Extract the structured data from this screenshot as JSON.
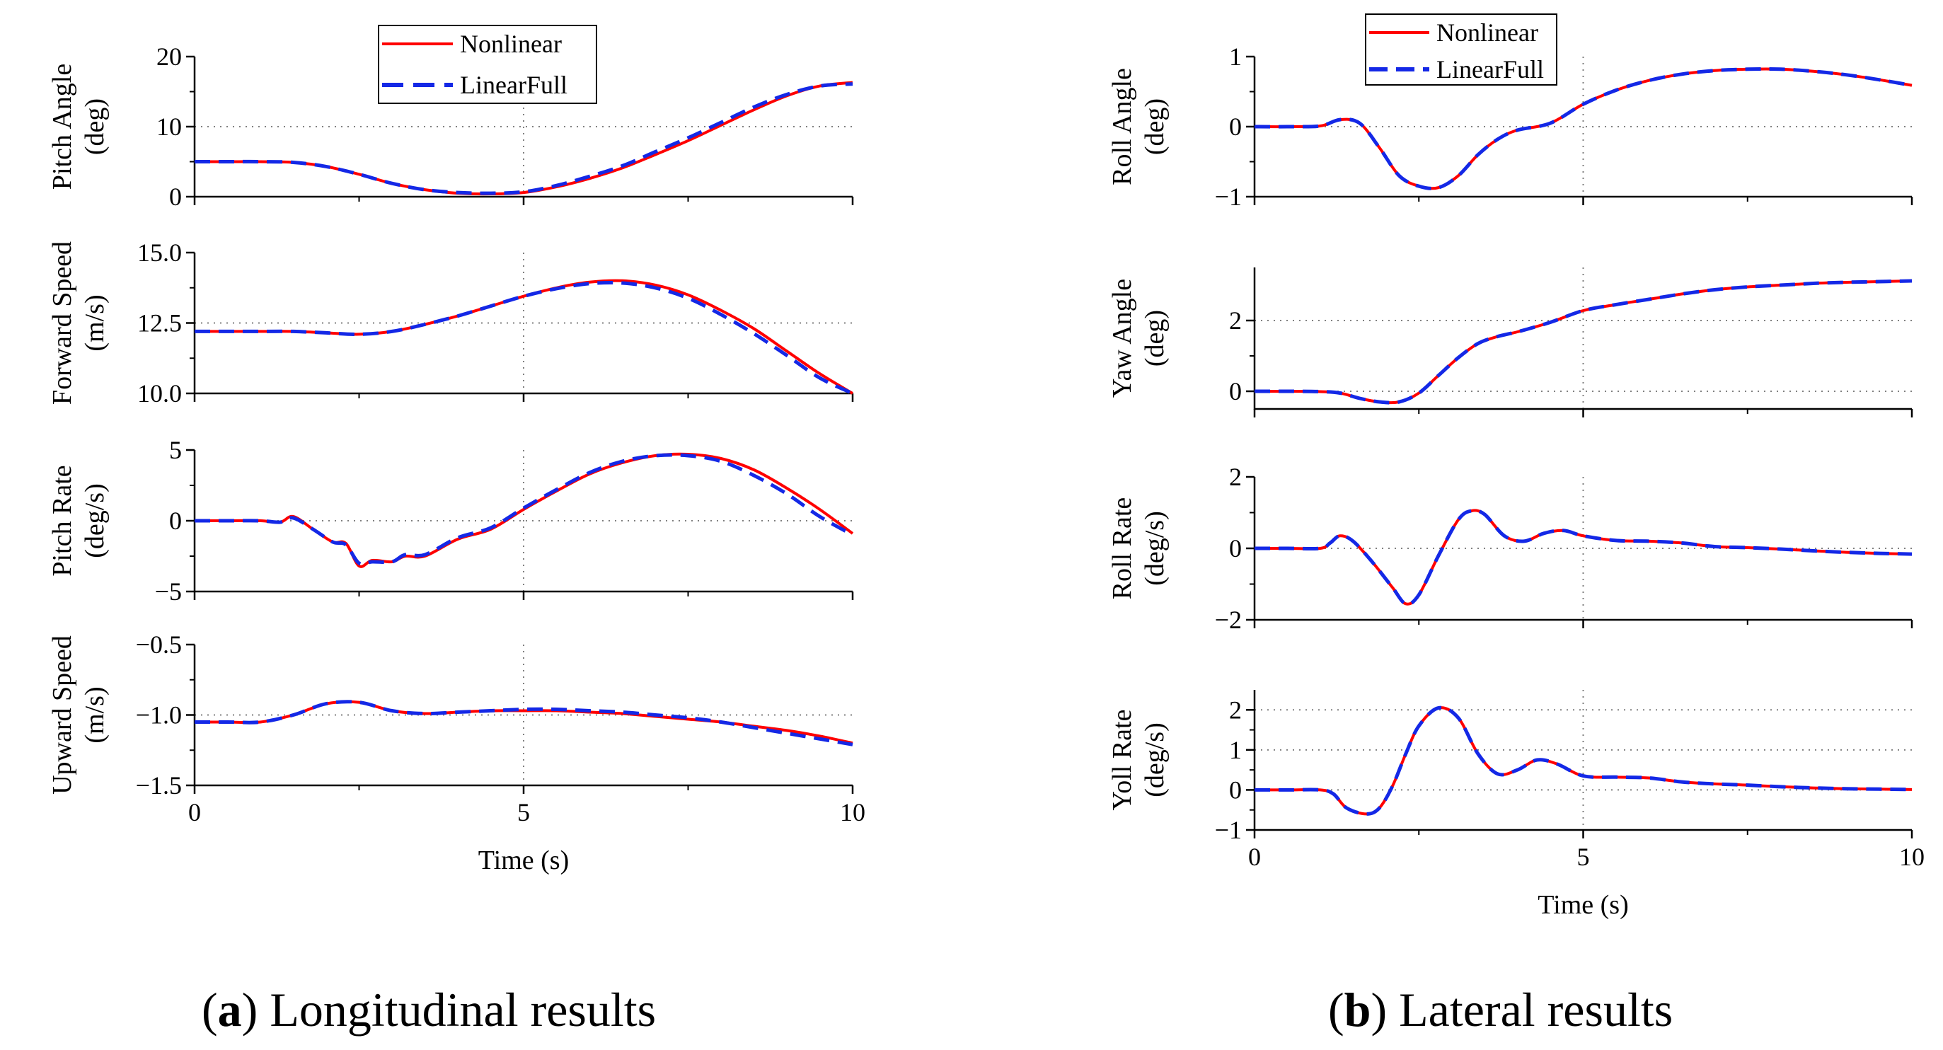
{
  "colors": {
    "nonlinear": "#ff0000",
    "linear": "#1428e6",
    "axis": "#000000",
    "grid": "#808080"
  },
  "legend": {
    "nonlinear": "Nonlinear",
    "linear": "LinearFull"
  },
  "captions": {
    "a": {
      "letter": "a",
      "text": "Longitudinal results"
    },
    "b": {
      "letter": "b",
      "text": "Lateral results"
    }
  },
  "chart_data": [
    {
      "id": "pitch-angle",
      "panel": "a",
      "type": "line",
      "ylabel": [
        "Pitch Angle",
        "(deg)"
      ],
      "xlabel": "",
      "ylim": [
        0,
        20
      ],
      "yticks": [
        0,
        10,
        20
      ],
      "ytick_labels": [
        "0",
        "10",
        "20"
      ],
      "xlim": [
        0,
        10
      ],
      "xticks": [
        0,
        5,
        10
      ],
      "xtick_labels": [],
      "grid_y": [
        10
      ],
      "grid_x": [
        5
      ],
      "x": [
        0,
        0.5,
        1,
        1.5,
        2,
        2.5,
        3,
        3.5,
        4,
        4.5,
        5,
        5.5,
        6,
        6.5,
        7,
        7.5,
        8,
        8.5,
        9,
        9.5,
        10
      ],
      "series": [
        {
          "name": "Nonlinear",
          "values": [
            5,
            5,
            5,
            4.9,
            4.3,
            3.2,
            1.9,
            1.0,
            0.5,
            0.4,
            0.6,
            1.4,
            2.6,
            4.1,
            6.0,
            8.0,
            10.2,
            12.4,
            14.4,
            15.8,
            16.3
          ]
        },
        {
          "name": "LinearFull",
          "values": [
            5,
            5,
            5,
            4.9,
            4.3,
            3.2,
            1.9,
            1.0,
            0.6,
            0.5,
            0.7,
            1.6,
            2.9,
            4.4,
            6.4,
            8.4,
            10.6,
            12.8,
            14.6,
            15.8,
            16.1
          ]
        }
      ]
    },
    {
      "id": "forward-speed",
      "panel": "a",
      "type": "line",
      "ylabel": [
        "Forward Speed",
        "(m/s)"
      ],
      "xlabel": "",
      "ylim": [
        10,
        15
      ],
      "yticks": [
        10,
        12.5,
        15
      ],
      "ytick_labels": [
        "10.0",
        "12.5",
        "15.0"
      ],
      "xlim": [
        0,
        10
      ],
      "xticks": [
        0,
        5,
        10
      ],
      "xtick_labels": [],
      "grid_y": [
        12.5
      ],
      "grid_x": [
        5
      ],
      "x": [
        0,
        0.5,
        1,
        1.5,
        2,
        2.5,
        3,
        3.5,
        4,
        4.5,
        5,
        5.5,
        6,
        6.5,
        7,
        7.5,
        8,
        8.5,
        9,
        9.5,
        10
      ],
      "series": [
        {
          "name": "Nonlinear",
          "values": [
            12.2,
            12.2,
            12.2,
            12.2,
            12.15,
            12.1,
            12.2,
            12.45,
            12.75,
            13.1,
            13.45,
            13.75,
            13.95,
            14.0,
            13.85,
            13.5,
            12.95,
            12.3,
            11.5,
            10.7,
            10.0
          ]
        },
        {
          "name": "LinearFull",
          "values": [
            12.2,
            12.2,
            12.2,
            12.2,
            12.15,
            12.1,
            12.2,
            12.45,
            12.75,
            13.1,
            13.45,
            13.72,
            13.9,
            13.92,
            13.75,
            13.38,
            12.8,
            12.12,
            11.35,
            10.55,
            10.0
          ]
        }
      ]
    },
    {
      "id": "pitch-rate",
      "panel": "a",
      "type": "line",
      "ylabel": [
        "Pitch Rate",
        "(deg/s)"
      ],
      "xlabel": "",
      "ylim": [
        -5,
        5
      ],
      "yticks": [
        -5,
        0,
        5
      ],
      "ytick_labels": [
        "−5",
        "0",
        "5"
      ],
      "xlim": [
        0,
        10
      ],
      "xticks": [
        0,
        5,
        10
      ],
      "xtick_labels": [],
      "grid_y": [
        0
      ],
      "grid_x": [
        5
      ],
      "x": [
        0,
        0.5,
        1,
        1.3,
        1.5,
        1.8,
        2.1,
        2.3,
        2.5,
        2.7,
        3.0,
        3.2,
        3.5,
        4,
        4.5,
        5,
        5.5,
        6,
        6.5,
        7,
        7.5,
        8,
        8.5,
        9,
        9.5,
        10
      ],
      "series": [
        {
          "name": "Nonlinear",
          "values": [
            0,
            0,
            0,
            -0.1,
            0.3,
            -0.6,
            -1.5,
            -1.6,
            -3.2,
            -2.8,
            -2.9,
            -2.5,
            -2.5,
            -1.3,
            -0.6,
            0.8,
            2.1,
            3.3,
            4.1,
            4.6,
            4.7,
            4.4,
            3.6,
            2.3,
            0.8,
            -0.9
          ]
        },
        {
          "name": "LinearFull",
          "values": [
            0,
            0,
            0,
            -0.1,
            0.2,
            -0.6,
            -1.5,
            -1.7,
            -3.0,
            -2.9,
            -2.9,
            -2.4,
            -2.4,
            -1.2,
            -0.5,
            0.9,
            2.2,
            3.4,
            4.2,
            4.6,
            4.6,
            4.2,
            3.2,
            1.9,
            0.3,
            -1.0
          ]
        }
      ]
    },
    {
      "id": "upward-speed",
      "panel": "a",
      "type": "line",
      "ylabel": [
        "Upward Speed",
        "(m/s)"
      ],
      "xlabel": "Time (s)",
      "ylim": [
        -1.5,
        -0.5
      ],
      "yticks": [
        -1.5,
        -1.0,
        -0.5
      ],
      "ytick_labels": [
        "−1.5",
        "−1.0",
        "−0.5"
      ],
      "xlim": [
        0,
        10
      ],
      "xticks": [
        0,
        5,
        10
      ],
      "xtick_labels": [
        "0",
        "5",
        "10"
      ],
      "grid_y": [
        -1.0
      ],
      "grid_x": [
        5
      ],
      "x": [
        0,
        0.5,
        1,
        1.5,
        2,
        2.5,
        3,
        3.5,
        4,
        4.5,
        5,
        5.5,
        6,
        6.5,
        7,
        7.5,
        8,
        8.5,
        9,
        9.5,
        10
      ],
      "series": [
        {
          "name": "Nonlinear",
          "values": [
            -1.05,
            -1.05,
            -1.05,
            -1.0,
            -0.92,
            -0.91,
            -0.97,
            -0.99,
            -0.98,
            -0.97,
            -0.97,
            -0.97,
            -0.98,
            -0.99,
            -1.01,
            -1.03,
            -1.05,
            -1.08,
            -1.11,
            -1.15,
            -1.2
          ]
        },
        {
          "name": "LinearFull",
          "values": [
            -1.05,
            -1.05,
            -1.05,
            -1.0,
            -0.92,
            -0.91,
            -0.97,
            -0.99,
            -0.98,
            -0.97,
            -0.96,
            -0.96,
            -0.97,
            -0.98,
            -1.0,
            -1.02,
            -1.05,
            -1.09,
            -1.13,
            -1.17,
            -1.21
          ]
        }
      ]
    },
    {
      "id": "roll-angle",
      "panel": "b",
      "type": "line",
      "ylabel": [
        "Roll Angle",
        "(deg)"
      ],
      "xlabel": "",
      "ylim": [
        -1,
        1
      ],
      "yticks": [
        -1,
        0,
        1
      ],
      "ytick_labels": [
        "−1",
        "0",
        "1"
      ],
      "xlim": [
        0,
        10
      ],
      "xticks": [
        0,
        5,
        10
      ],
      "xtick_labels": [],
      "grid_y": [
        0
      ],
      "grid_x": [
        5
      ],
      "x": [
        0,
        0.5,
        1,
        1.3,
        1.6,
        1.9,
        2.2,
        2.5,
        2.8,
        3.1,
        3.4,
        3.7,
        4,
        4.5,
        5,
        5.5,
        6,
        6.5,
        7,
        7.5,
        8,
        8.5,
        9,
        9.5,
        10
      ],
      "series": [
        {
          "name": "Nonlinear",
          "values": [
            0,
            0,
            0.01,
            0.1,
            0.05,
            -0.3,
            -0.7,
            -0.85,
            -0.87,
            -0.7,
            -0.4,
            -0.18,
            -0.05,
            0.05,
            0.32,
            0.52,
            0.66,
            0.75,
            0.8,
            0.82,
            0.82,
            0.79,
            0.74,
            0.67,
            0.59
          ]
        },
        {
          "name": "LinearFull",
          "values": [
            0,
            0,
            0.01,
            0.1,
            0.05,
            -0.3,
            -0.7,
            -0.85,
            -0.87,
            -0.7,
            -0.4,
            -0.18,
            -0.05,
            0.05,
            0.32,
            0.52,
            0.66,
            0.75,
            0.8,
            0.82,
            0.82,
            0.79,
            0.74,
            0.67,
            0.59
          ]
        }
      ]
    },
    {
      "id": "yaw-angle",
      "panel": "b",
      "type": "line",
      "ylabel": [
        "Yaw Angle",
        "(deg)"
      ],
      "xlabel": "",
      "ylim": [
        -0.5,
        3.5
      ],
      "yticks": [
        0,
        2
      ],
      "ytick_labels": [
        "0",
        "2"
      ],
      "xlim": [
        0,
        10
      ],
      "xticks": [
        0,
        5,
        10
      ],
      "xtick_labels": [],
      "grid_y": [
        0,
        2
      ],
      "grid_x": [
        5
      ],
      "x": [
        0,
        0.5,
        1,
        1.3,
        1.6,
        1.9,
        2.2,
        2.5,
        2.8,
        3.1,
        3.4,
        3.7,
        4,
        4.5,
        5,
        5.5,
        6,
        6.5,
        7,
        7.5,
        8,
        8.5,
        9,
        9.5,
        10
      ],
      "series": [
        {
          "name": "Nonlinear",
          "values": [
            0,
            0,
            -0.01,
            -0.05,
            -0.2,
            -0.3,
            -0.3,
            -0.05,
            0.45,
            0.95,
            1.35,
            1.55,
            1.68,
            1.95,
            2.28,
            2.45,
            2.6,
            2.75,
            2.87,
            2.95,
            3.0,
            3.05,
            3.08,
            3.1,
            3.12
          ]
        },
        {
          "name": "LinearFull",
          "values": [
            0,
            0,
            -0.01,
            -0.05,
            -0.2,
            -0.3,
            -0.3,
            -0.05,
            0.45,
            0.95,
            1.35,
            1.55,
            1.68,
            1.95,
            2.28,
            2.45,
            2.6,
            2.75,
            2.87,
            2.95,
            3.0,
            3.05,
            3.08,
            3.1,
            3.12
          ]
        }
      ]
    },
    {
      "id": "roll-rate",
      "panel": "b",
      "type": "line",
      "ylabel": [
        "Roll Rate",
        "(deg/s)"
      ],
      "xlabel": "",
      "ylim": [
        -2,
        2
      ],
      "yticks": [
        -2,
        0,
        2
      ],
      "ytick_labels": [
        "−2",
        "0",
        "2"
      ],
      "xlim": [
        0,
        10
      ],
      "xticks": [
        0,
        5,
        10
      ],
      "xtick_labels": [],
      "grid_y": [
        0
      ],
      "grid_x": [
        5
      ],
      "x": [
        0,
        0.5,
        1,
        1.15,
        1.3,
        1.5,
        1.8,
        2.1,
        2.3,
        2.5,
        2.8,
        3.1,
        3.3,
        3.5,
        3.8,
        4.1,
        4.4,
        4.7,
        5,
        5.5,
        6,
        6.5,
        7,
        7.5,
        8,
        8.5,
        9,
        9.5,
        10
      ],
      "series": [
        {
          "name": "Nonlinear",
          "values": [
            0,
            0,
            0,
            0.15,
            0.35,
            0.2,
            -0.4,
            -1.1,
            -1.55,
            -1.3,
            -0.2,
            0.8,
            1.05,
            0.95,
            0.35,
            0.2,
            0.42,
            0.5,
            0.35,
            0.22,
            0.2,
            0.15,
            0.05,
            0.02,
            -0.02,
            -0.07,
            -0.11,
            -0.14,
            -0.16
          ]
        },
        {
          "name": "LinearFull",
          "values": [
            0,
            0,
            0,
            0.15,
            0.35,
            0.2,
            -0.4,
            -1.1,
            -1.55,
            -1.3,
            -0.2,
            0.8,
            1.05,
            0.95,
            0.35,
            0.2,
            0.42,
            0.5,
            0.35,
            0.22,
            0.2,
            0.15,
            0.05,
            0.02,
            -0.02,
            -0.07,
            -0.11,
            -0.14,
            -0.16
          ]
        }
      ]
    },
    {
      "id": "yoll-rate",
      "panel": "b",
      "type": "line",
      "ylabel": [
        "Yoll Rate",
        "(deg/s)"
      ],
      "xlabel": "Time (s)",
      "ylim": [
        -1,
        2.5
      ],
      "yticks": [
        -1,
        0,
        1,
        2
      ],
      "ytick_labels": [
        "−1",
        "0",
        "1",
        "2"
      ],
      "xlim": [
        0,
        10
      ],
      "xticks": [
        0,
        5,
        10
      ],
      "xtick_labels": [
        "0",
        "5",
        "10"
      ],
      "grid_y": [
        0,
        1,
        2
      ],
      "grid_x": [
        5
      ],
      "x": [
        0,
        0.5,
        1,
        1.2,
        1.4,
        1.7,
        1.9,
        2.1,
        2.3,
        2.5,
        2.8,
        3.1,
        3.4,
        3.7,
        4.0,
        4.3,
        4.6,
        5.0,
        5.5,
        6,
        6.5,
        7,
        7.5,
        8,
        8.5,
        9,
        9.5,
        10
      ],
      "series": [
        {
          "name": "Nonlinear",
          "values": [
            0,
            0,
            0,
            -0.1,
            -0.45,
            -0.6,
            -0.45,
            0.1,
            0.9,
            1.6,
            2.05,
            1.8,
            0.9,
            0.4,
            0.5,
            0.75,
            0.65,
            0.35,
            0.32,
            0.3,
            0.2,
            0.15,
            0.12,
            0.08,
            0.05,
            0.03,
            0.02,
            0.01
          ]
        },
        {
          "name": "LinearFull",
          "values": [
            0,
            0,
            0,
            -0.1,
            -0.45,
            -0.6,
            -0.45,
            0.1,
            0.9,
            1.6,
            2.05,
            1.8,
            0.9,
            0.4,
            0.5,
            0.75,
            0.65,
            0.35,
            0.32,
            0.3,
            0.2,
            0.15,
            0.12,
            0.08,
            0.05,
            0.03,
            0.02,
            0.01
          ]
        }
      ]
    }
  ]
}
